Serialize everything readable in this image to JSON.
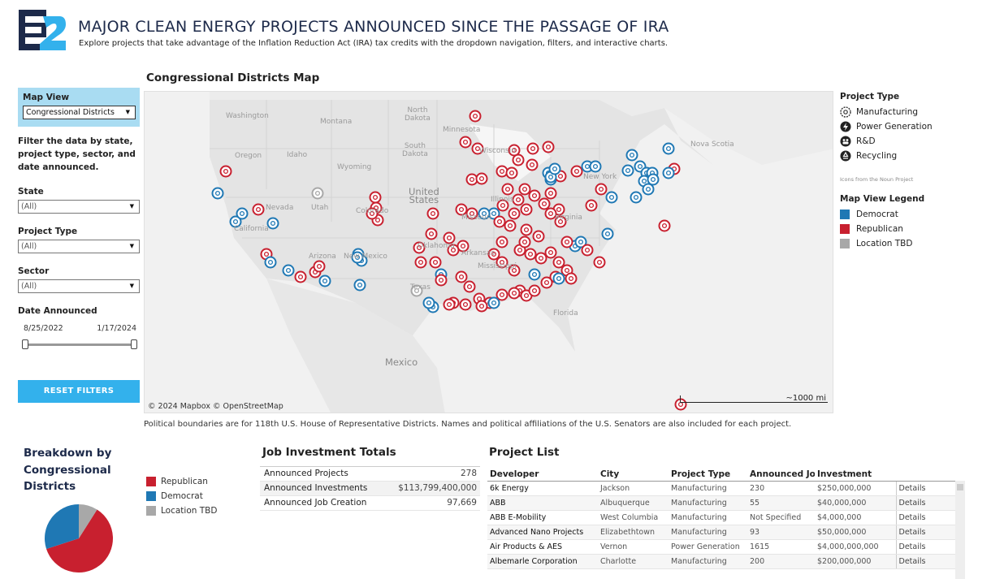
{
  "header": {
    "logo_text": "E2",
    "title": "MAJOR CLEAN ENERGY PROJECTS ANNOUNCED SINCE THE PASSAGE OF IRA",
    "subtitle": "Explore projects that take advantage of the Inflation Reduction Act (IRA) tax credits with the dropdown navigation, filters, and interactive charts."
  },
  "sidebar": {
    "map_view_label": "Map View",
    "map_view_value": "Congressional Districts",
    "filter_note": "Filter the data by state, project type, sector, and date announced.",
    "state_label": "State",
    "state_value": "(All)",
    "project_type_label": "Project Type",
    "project_type_value": "(All)",
    "sector_label": "Sector",
    "sector_value": "(All)",
    "date_label": "Date Announced",
    "date_start": "8/25/2022",
    "date_end": "1/17/2024",
    "reset_label": "RESET FILTERS"
  },
  "map": {
    "title": "Congressional Districts Map",
    "credit": "© 2024 Mapbox  © OpenStreetMap",
    "scale_label": "~1000 mi",
    "labels": {
      "washington": "Washington",
      "montana": "Montana",
      "north_dakota": "North\nDakota",
      "minnesota": "Minnesota",
      "oregon": "Oregon",
      "idaho": "Idaho",
      "wyoming": "Wyoming",
      "south_dakota": "South\nDakota",
      "wisconsin": "Wisconsin",
      "nevada": "Nevada",
      "utah": "Utah",
      "colorado": "Colorado",
      "united_states": "United\nStates",
      "illinois": "Illinois",
      "california": "California",
      "missouri": "Missouri",
      "virginia": "Virginia",
      "arizona": "Arizona",
      "new_mexico": "New Mexico",
      "oklahoma": "Oklahoma",
      "arkansas": "Arkansas",
      "mississippi": "Mississippi",
      "texas": "Texas",
      "florida": "Florida",
      "mexico": "Mexico",
      "nova_scotia": "Nova Scotia",
      "new_york": "New York"
    },
    "footnote": "Political boundaries are for 118th U.S. House of Representative Districts. Names and political affiliations of the U.S. Senators are also included for each project."
  },
  "legend": {
    "project_type_title": "Project Type",
    "types": [
      {
        "label": "Manufacturing",
        "icon": "gear-icon"
      },
      {
        "label": "Power Generation",
        "icon": "lightning-icon"
      },
      {
        "label": "R&D",
        "icon": "people-icon"
      },
      {
        "label": "Recycling",
        "icon": "recycle-icon"
      }
    ],
    "noun_credit": "Icons from the Noun Project",
    "map_view_title": "Map View Legend",
    "parties": [
      {
        "label": "Democrat",
        "color": "#1f78b4"
      },
      {
        "label": "Republican",
        "color": "#c8202f"
      },
      {
        "label": "Location TBD",
        "color": "#a8a8a8"
      }
    ]
  },
  "breakdown": {
    "title": "Breakdown by Congressional Districts",
    "legend": [
      {
        "label": "Republican",
        "color": "#c8202f"
      },
      {
        "label": "Democrat",
        "color": "#1f78b4"
      },
      {
        "label": "Location TBD",
        "color": "#a8a8a8"
      }
    ],
    "pie_shares": {
      "republican": 0.61,
      "democrat": 0.3,
      "tbd": 0.09
    }
  },
  "job_totals": {
    "title": "Job Investment Totals",
    "rows": [
      {
        "label": "Announced Projects",
        "value": "278"
      },
      {
        "label": "Announced Investments",
        "value": "$113,799,400,000"
      },
      {
        "label": "Announced Job Creation",
        "value": "97,669"
      }
    ]
  },
  "project_list": {
    "title": "Project List",
    "columns": [
      "Developer",
      "City",
      "Project Type",
      "Announced Jo..",
      "Investment",
      ""
    ],
    "rows": [
      [
        "6k Energy",
        "Jackson",
        "Manufacturing",
        "230",
        "$250,000,000",
        "Details"
      ],
      [
        "ABB",
        "Albuquerque",
        "Manufacturing",
        "55",
        "$40,000,000",
        "Details"
      ],
      [
        "ABB E-Mobility",
        "West Columbia",
        "Manufacturing",
        "Not Specified",
        "$4,000,000",
        "Details"
      ],
      [
        "Advanced Nano Projects",
        "Elizabethtown",
        "Manufacturing",
        "93",
        "$50,000,000",
        "Details"
      ],
      [
        "Air Products & AES",
        "Vernon",
        "Power Generation",
        "1615",
        "$4,000,000,000",
        "Details"
      ],
      [
        "Albemarle Corporation",
        "Charlotte",
        "Manufacturing",
        "200",
        "$200,000,000",
        "Details"
      ]
    ]
  }
}
